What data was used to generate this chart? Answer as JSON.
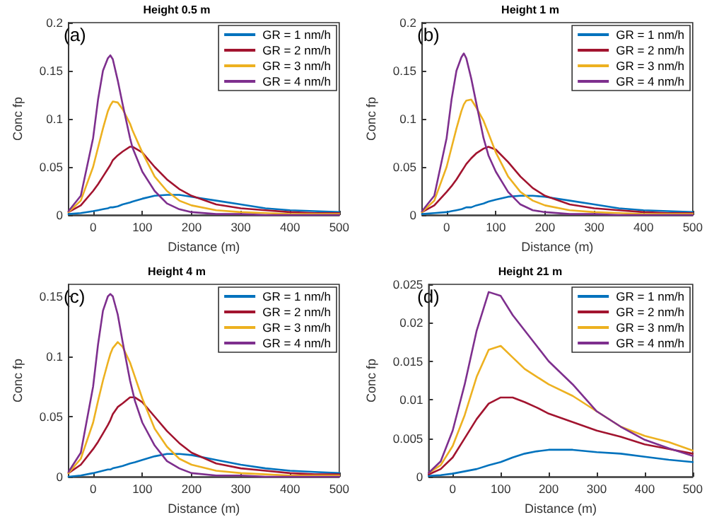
{
  "chart_data": [
    {
      "type": "line",
      "title": "Height 0.5 m",
      "xlabel": "Distance (m)",
      "ylabel": "Conc fp",
      "annotations": [
        "(a)"
      ],
      "xlim": [
        -50,
        500
      ],
      "xticks": [
        0,
        100,
        200,
        300,
        400,
        500
      ],
      "ylim": [
        0,
        0.2
      ],
      "yticks": [
        0,
        0.05,
        0.1,
        0.15,
        0.2
      ],
      "grid": false,
      "legend": "top right",
      "x": [
        -50,
        -25,
        0,
        10,
        20,
        30,
        35,
        40,
        50,
        60,
        75,
        80,
        100,
        125,
        150,
        175,
        200,
        250,
        300,
        350,
        400,
        450,
        500
      ],
      "series": [
        {
          "name": "GR = 1 nm/h",
          "color": "#0072bd",
          "values": [
            0.001,
            0.002,
            0.004,
            0.005,
            0.006,
            0.007,
            0.008,
            0.008,
            0.009,
            0.011,
            0.013,
            0.014,
            0.017,
            0.02,
            0.021,
            0.021,
            0.019,
            0.015,
            0.011,
            0.007,
            0.005,
            0.004,
            0.003
          ]
        },
        {
          "name": "GR = 2 nm/h",
          "color": "#a2142f",
          "values": [
            0.003,
            0.01,
            0.025,
            0.032,
            0.04,
            0.048,
            0.052,
            0.057,
            0.062,
            0.066,
            0.071,
            0.071,
            0.065,
            0.05,
            0.037,
            0.027,
            0.02,
            0.011,
            0.007,
            0.005,
            0.003,
            0.002,
            0.002
          ]
        },
        {
          "name": "GR = 3 nm/h",
          "color": "#edb120",
          "values": [
            0.003,
            0.015,
            0.05,
            0.07,
            0.09,
            0.108,
            0.114,
            0.118,
            0.117,
            0.11,
            0.095,
            0.088,
            0.065,
            0.04,
            0.025,
            0.015,
            0.01,
            0.005,
            0.003,
            0.002,
            0.001,
            0.001,
            0.001
          ]
        },
        {
          "name": "GR = 4 nm/h",
          "color": "#7e2f8e",
          "values": [
            0.004,
            0.02,
            0.08,
            0.12,
            0.15,
            0.163,
            0.166,
            0.162,
            0.14,
            0.115,
            0.08,
            0.07,
            0.045,
            0.025,
            0.012,
            0.006,
            0.003,
            0.001,
            0.001,
            0,
            0,
            0,
            0
          ]
        }
      ]
    },
    {
      "type": "line",
      "title": "Height 1 m",
      "xlabel": "Distance (m)",
      "ylabel": "Conc fp",
      "annotations": [
        "(b)"
      ],
      "xlim": [
        -50,
        500
      ],
      "xticks": [
        0,
        100,
        200,
        300,
        400,
        500
      ],
      "ylim": [
        0,
        0.2
      ],
      "yticks": [
        0,
        0.05,
        0.1,
        0.15,
        0.2
      ],
      "grid": false,
      "legend": "top right",
      "x": [
        -50,
        -25,
        0,
        10,
        20,
        30,
        35,
        40,
        50,
        60,
        75,
        85,
        100,
        125,
        150,
        175,
        200,
        250,
        300,
        350,
        400,
        450,
        500
      ],
      "series": [
        {
          "name": "GR = 1 nm/h",
          "color": "#0072bd",
          "values": [
            0.001,
            0.002,
            0.003,
            0.004,
            0.005,
            0.006,
            0.007,
            0.008,
            0.008,
            0.01,
            0.012,
            0.014,
            0.016,
            0.019,
            0.02,
            0.02,
            0.019,
            0.015,
            0.011,
            0.007,
            0.005,
            0.004,
            0.003
          ]
        },
        {
          "name": "GR = 2 nm/h",
          "color": "#a2142f",
          "values": [
            0.003,
            0.01,
            0.024,
            0.03,
            0.037,
            0.045,
            0.049,
            0.053,
            0.059,
            0.064,
            0.069,
            0.071,
            0.068,
            0.055,
            0.04,
            0.028,
            0.02,
            0.011,
            0.007,
            0.005,
            0.003,
            0.002,
            0.002
          ]
        },
        {
          "name": "GR = 3 nm/h",
          "color": "#edb120",
          "values": [
            0.003,
            0.015,
            0.05,
            0.07,
            0.09,
            0.108,
            0.115,
            0.119,
            0.12,
            0.112,
            0.098,
            0.085,
            0.065,
            0.04,
            0.024,
            0.015,
            0.01,
            0.005,
            0.003,
            0.002,
            0.001,
            0.001,
            0.001
          ]
        },
        {
          "name": "GR = 4 nm/h",
          "color": "#7e2f8e",
          "values": [
            0.004,
            0.02,
            0.08,
            0.12,
            0.15,
            0.164,
            0.168,
            0.163,
            0.142,
            0.117,
            0.08,
            0.062,
            0.045,
            0.024,
            0.011,
            0.005,
            0.003,
            0.001,
            0.001,
            0,
            0,
            0,
            0
          ]
        }
      ]
    },
    {
      "type": "line",
      "title": "Height 4 m",
      "xlabel": "Distance (m)",
      "ylabel": "Conc fp",
      "annotations": [
        "(c)"
      ],
      "xlim": [
        -50,
        500
      ],
      "xticks": [
        0,
        100,
        200,
        300,
        400,
        500
      ],
      "ylim": [
        0,
        0.16
      ],
      "yticks": [
        0,
        0.05,
        0.1,
        0.15
      ],
      "grid": false,
      "legend": "top right",
      "x": [
        -50,
        -25,
        0,
        10,
        20,
        30,
        35,
        40,
        50,
        60,
        75,
        85,
        100,
        125,
        150,
        175,
        200,
        250,
        300,
        350,
        400,
        450,
        500
      ],
      "series": [
        {
          "name": "GR = 1 nm/h",
          "color": "#0072bd",
          "values": [
            0,
            0.001,
            0.003,
            0.004,
            0.005,
            0.006,
            0.006,
            0.007,
            0.008,
            0.009,
            0.011,
            0.012,
            0.014,
            0.017,
            0.019,
            0.019,
            0.018,
            0.014,
            0.01,
            0.007,
            0.005,
            0.004,
            0.003
          ]
        },
        {
          "name": "GR = 2 nm/h",
          "color": "#a2142f",
          "values": [
            0.003,
            0.01,
            0.023,
            0.029,
            0.036,
            0.043,
            0.047,
            0.052,
            0.058,
            0.061,
            0.066,
            0.066,
            0.062,
            0.05,
            0.038,
            0.028,
            0.02,
            0.011,
            0.007,
            0.005,
            0.003,
            0.002,
            0.002
          ]
        },
        {
          "name": "GR = 3 nm/h",
          "color": "#edb120",
          "values": [
            0.003,
            0.015,
            0.045,
            0.063,
            0.08,
            0.095,
            0.102,
            0.107,
            0.112,
            0.108,
            0.095,
            0.083,
            0.065,
            0.04,
            0.025,
            0.015,
            0.01,
            0.005,
            0.003,
            0.002,
            0.001,
            0.001,
            0.001
          ]
        },
        {
          "name": "GR = 4 nm/h",
          "color": "#7e2f8e",
          "values": [
            0.004,
            0.02,
            0.075,
            0.11,
            0.138,
            0.15,
            0.152,
            0.15,
            0.135,
            0.112,
            0.08,
            0.063,
            0.045,
            0.026,
            0.013,
            0.007,
            0.003,
            0.001,
            0.001,
            0,
            0,
            0,
            0
          ]
        }
      ]
    },
    {
      "type": "line",
      "title": "Height 21 m",
      "xlabel": "Distance (m)",
      "ylabel": "Conc fp",
      "annotations": [
        "(d)"
      ],
      "xlim": [
        -50,
        500
      ],
      "xticks": [
        0,
        100,
        200,
        300,
        400,
        500
      ],
      "ylim": [
        0,
        0.025
      ],
      "yticks": [
        0,
        0.005,
        0.01,
        0.015,
        0.02,
        0.025
      ],
      "grid": false,
      "legend": "top right",
      "x": [
        -50,
        -25,
        0,
        25,
        50,
        75,
        100,
        125,
        150,
        175,
        200,
        250,
        300,
        350,
        400,
        450,
        500
      ],
      "series": [
        {
          "name": "GR = 1 nm/h",
          "color": "#0072bd",
          "values": [
            0.0001,
            0.0002,
            0.0004,
            0.0007,
            0.001,
            0.0015,
            0.0019,
            0.0025,
            0.003,
            0.0033,
            0.0035,
            0.0035,
            0.0032,
            0.003,
            0.0026,
            0.0022,
            0.0019
          ]
        },
        {
          "name": "GR = 2 nm/h",
          "color": "#a2142f",
          "values": [
            0.0003,
            0.001,
            0.0025,
            0.005,
            0.0075,
            0.0095,
            0.0103,
            0.0103,
            0.0097,
            0.009,
            0.0082,
            0.0071,
            0.006,
            0.0052,
            0.0042,
            0.0036,
            0.003
          ]
        },
        {
          "name": "GR = 3 nm/h",
          "color": "#edb120",
          "values": [
            0.0005,
            0.0015,
            0.004,
            0.008,
            0.013,
            0.0165,
            0.017,
            0.0155,
            0.014,
            0.013,
            0.012,
            0.0105,
            0.0085,
            0.0065,
            0.0053,
            0.0045,
            0.0034
          ]
        },
        {
          "name": "GR = 4 nm/h",
          "color": "#7e2f8e",
          "values": [
            0.0005,
            0.002,
            0.006,
            0.012,
            0.019,
            0.024,
            0.0235,
            0.021,
            0.019,
            0.017,
            0.015,
            0.012,
            0.0085,
            0.0065,
            0.0048,
            0.0037,
            0.0027
          ]
        }
      ]
    }
  ]
}
